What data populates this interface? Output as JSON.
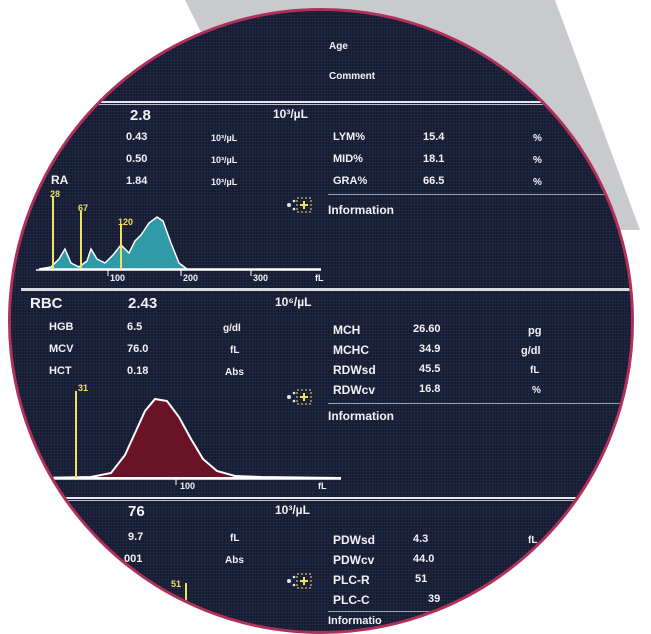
{
  "header": {
    "age_label": "Age",
    "comment_label": "Comment"
  },
  "wbc": {
    "main_value": "2.8",
    "main_unit": "10³/µL",
    "left_partial_label": "RA",
    "rows_left": [
      {
        "value": "0.43",
        "unit": "10³/µL"
      },
      {
        "value": "0.50",
        "unit": "10³/µL"
      },
      {
        "value": "1.84",
        "unit": "10³/µL"
      }
    ],
    "rows_right": [
      {
        "label": "LYM%",
        "value": "15.4",
        "unit": "%"
      },
      {
        "label": "MID%",
        "value": "18.1",
        "unit": "%"
      },
      {
        "label": "GRA%",
        "value": "66.5",
        "unit": "%"
      }
    ],
    "info_label": "Information",
    "histogram": {
      "markers": [
        "28",
        "67",
        "120"
      ],
      "axis_ticks": [
        "100",
        "200",
        "300",
        "fL"
      ],
      "fill_color": "#2f9aa8"
    }
  },
  "rbc": {
    "label": "RBC",
    "main_value": "2.43",
    "main_unit": "10⁶/µL",
    "rows_left": [
      {
        "label": "HGB",
        "value": "6.5",
        "unit": "g/dl"
      },
      {
        "label": "MCV",
        "value": "76.0",
        "unit": "fL"
      },
      {
        "label": "HCT",
        "value": "0.18",
        "unit": "Abs"
      }
    ],
    "rows_right": [
      {
        "label": "MCH",
        "value": "26.60",
        "unit": "pg"
      },
      {
        "label": "MCHC",
        "value": "34.9",
        "unit": "g/dl"
      },
      {
        "label": "RDWsd",
        "value": "45.5",
        "unit": "fL"
      },
      {
        "label": "RDWcv",
        "value": "16.8",
        "unit": "%"
      }
    ],
    "info_label": "Information",
    "histogram": {
      "markers": [
        "31"
      ],
      "axis_ticks": [
        "100",
        "fL"
      ],
      "fill_color": "#6a1226"
    }
  },
  "plt": {
    "main_value": "76",
    "main_unit": "10³/µL",
    "rows_left": [
      {
        "value": "9.7",
        "unit": "fL"
      },
      {
        "value": ".001",
        "unit": "Abs"
      }
    ],
    "rows_right": [
      {
        "label": "PDWsd",
        "value": "4.3",
        "unit": "fL"
      },
      {
        "label": "PDWcv",
        "value": "44.0",
        "unit": ""
      },
      {
        "label": "PLC-R",
        "value": "51",
        "unit": ""
      },
      {
        "label": "PLC-C",
        "value": "39",
        "unit": ""
      }
    ],
    "info_label": "Informatio",
    "histogram": {
      "markers": [
        "51"
      ]
    }
  },
  "icons": [
    "zoom-icon",
    "zoom-icon",
    "zoom-icon"
  ],
  "colors": {
    "frame": "#b0305a",
    "screen": "#161c34",
    "marker": "#f2e060",
    "text": "#f2f2f6"
  }
}
